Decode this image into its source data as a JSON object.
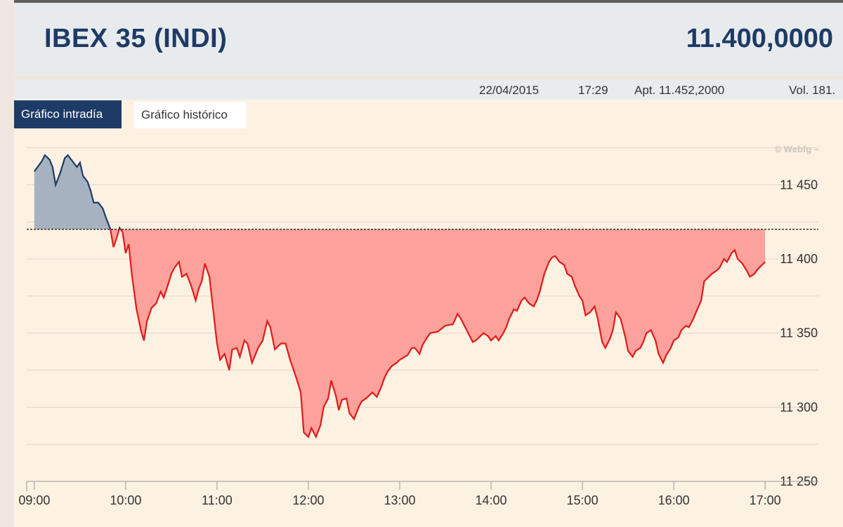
{
  "header": {
    "title": "IBEX 35 (INDI)",
    "price": "11.400,0000"
  },
  "infobar": {
    "date": "22/04/2015",
    "time": "17:29",
    "open": "Apt. 11.452,2000",
    "volume": "Vol. 181."
  },
  "tabs": [
    {
      "label": "Gráfico intradía",
      "active": true
    },
    {
      "label": "Gráfico histórico",
      "active": false
    }
  ],
  "watermark": "© Webfg –",
  "colors": {
    "header_text": "#1d3b66",
    "up_line": "#1d3b66",
    "up_fill": "#a7b2c0",
    "down_line": "#e01a1a",
    "down_fill": "#fca19b",
    "background": "#fdf1e2"
  },
  "chart_data": {
    "type": "area",
    "reference_value": 11420,
    "ylim": [
      11250,
      11480
    ],
    "xlim": [
      "08:55",
      "17:35"
    ],
    "yticks": [
      {
        "value": 11250,
        "label": "11 250"
      },
      {
        "value": 11300,
        "label": "11 300"
      },
      {
        "value": 11350,
        "label": "11 350"
      },
      {
        "value": 11400,
        "label": "11 400"
      },
      {
        "value": 11450,
        "label": "11 450"
      }
    ],
    "xticks": [
      "09:00",
      "10:00",
      "11:00",
      "12:00",
      "13:00",
      "14:00",
      "15:00",
      "16:00",
      "17:00"
    ],
    "grid": true,
    "points": [
      [
        "09:00",
        11459
      ],
      [
        "09:05",
        11466
      ],
      [
        "09:07",
        11470
      ],
      [
        "09:10",
        11467
      ],
      [
        "09:12",
        11462
      ],
      [
        "09:14",
        11450
      ],
      [
        "09:17",
        11458
      ],
      [
        "09:20",
        11468
      ],
      [
        "09:22",
        11470
      ],
      [
        "09:25",
        11466
      ],
      [
        "09:28",
        11462
      ],
      [
        "09:30",
        11465
      ],
      [
        "09:32",
        11456
      ],
      [
        "09:35",
        11452
      ],
      [
        "09:37",
        11446
      ],
      [
        "09:39",
        11438
      ],
      [
        "09:42",
        11438
      ],
      [
        "09:45",
        11434
      ],
      [
        "09:47",
        11428
      ],
      [
        "09:50",
        11420
      ],
      [
        "09:52",
        11408
      ],
      [
        "09:54",
        11414
      ],
      [
        "09:56",
        11421
      ],
      [
        "09:58",
        11418
      ],
      [
        "10:00",
        11404
      ],
      [
        "10:02",
        11410
      ],
      [
        "10:04",
        11390
      ],
      [
        "10:07",
        11367
      ],
      [
        "10:10",
        11352
      ],
      [
        "10:12",
        11345
      ],
      [
        "10:14",
        11358
      ],
      [
        "10:17",
        11367
      ],
      [
        "10:20",
        11370
      ],
      [
        "10:23",
        11378
      ],
      [
        "10:25",
        11374
      ],
      [
        "10:27",
        11380
      ],
      [
        "10:30",
        11390
      ],
      [
        "10:32",
        11394
      ],
      [
        "10:35",
        11398
      ],
      [
        "10:37",
        11388
      ],
      [
        "10:40",
        11390
      ],
      [
        "10:43",
        11382
      ],
      [
        "10:46",
        11372
      ],
      [
        "10:48",
        11380
      ],
      [
        "10:50",
        11385
      ],
      [
        "10:52",
        11397
      ],
      [
        "10:55",
        11388
      ],
      [
        "10:57",
        11370
      ],
      [
        "11:00",
        11343
      ],
      [
        "11:02",
        11332
      ],
      [
        "11:05",
        11336
      ],
      [
        "11:08",
        11325
      ],
      [
        "11:10",
        11339
      ],
      [
        "11:13",
        11340
      ],
      [
        "11:15",
        11334
      ],
      [
        "11:18",
        11345
      ],
      [
        "11:20",
        11343
      ],
      [
        "11:23",
        11330
      ],
      [
        "11:27",
        11340
      ],
      [
        "11:30",
        11345
      ],
      [
        "11:33",
        11358
      ],
      [
        "11:35",
        11354
      ],
      [
        "11:38",
        11339
      ],
      [
        "11:42",
        11343
      ],
      [
        "11:45",
        11343
      ],
      [
        "11:48",
        11332
      ],
      [
        "11:52",
        11320
      ],
      [
        "11:55",
        11310
      ],
      [
        "11:57",
        11283
      ],
      [
        "12:00",
        11280
      ],
      [
        "12:02",
        11286
      ],
      [
        "12:05",
        11280
      ],
      [
        "12:08",
        11288
      ],
      [
        "12:10",
        11300
      ],
      [
        "12:13",
        11306
      ],
      [
        "12:15",
        11318
      ],
      [
        "12:18",
        11308
      ],
      [
        "12:20",
        11298
      ],
      [
        "12:22",
        11305
      ],
      [
        "12:25",
        11306
      ],
      [
        "12:27",
        11296
      ],
      [
        "12:30",
        11292
      ],
      [
        "12:33",
        11300
      ],
      [
        "12:35",
        11304
      ],
      [
        "12:38",
        11306
      ],
      [
        "12:42",
        11310
      ],
      [
        "12:45",
        11307
      ],
      [
        "12:48",
        11314
      ],
      [
        "12:50",
        11320
      ],
      [
        "12:52",
        11324
      ],
      [
        "12:55",
        11328
      ],
      [
        "12:58",
        11330
      ],
      [
        "13:00",
        11332
      ],
      [
        "13:05",
        11335
      ],
      [
        "13:08",
        11340
      ],
      [
        "13:10",
        11340
      ],
      [
        "13:13",
        11336
      ],
      [
        "13:15",
        11342
      ],
      [
        "13:18",
        11347
      ],
      [
        "13:20",
        11350
      ],
      [
        "13:25",
        11351
      ],
      [
        "13:30",
        11355
      ],
      [
        "13:35",
        11356
      ],
      [
        "13:38",
        11363
      ],
      [
        "13:40",
        11360
      ],
      [
        "13:42",
        11356
      ],
      [
        "13:45",
        11350
      ],
      [
        "13:48",
        11344
      ],
      [
        "13:50",
        11345
      ],
      [
        "13:55",
        11350
      ],
      [
        "13:58",
        11348
      ],
      [
        "14:00",
        11345
      ],
      [
        "14:03",
        11348
      ],
      [
        "14:05",
        11345
      ],
      [
        "14:08",
        11350
      ],
      [
        "14:10",
        11354
      ],
      [
        "14:12",
        11360
      ],
      [
        "14:15",
        11366
      ],
      [
        "14:17",
        11365
      ],
      [
        "14:20",
        11372
      ],
      [
        "14:22",
        11374
      ],
      [
        "14:25",
        11370
      ],
      [
        "14:28",
        11368
      ],
      [
        "14:30",
        11372
      ],
      [
        "14:32",
        11378
      ],
      [
        "14:35",
        11390
      ],
      [
        "14:38",
        11398
      ],
      [
        "14:40",
        11401
      ],
      [
        "14:42",
        11402
      ],
      [
        "14:45",
        11398
      ],
      [
        "14:48",
        11396
      ],
      [
        "14:50",
        11390
      ],
      [
        "14:53",
        11388
      ],
      [
        "14:55",
        11382
      ],
      [
        "14:58",
        11375
      ],
      [
        "15:00",
        11372
      ],
      [
        "15:02",
        11362
      ],
      [
        "15:05",
        11364
      ],
      [
        "15:08",
        11368
      ],
      [
        "15:10",
        11360
      ],
      [
        "15:13",
        11344
      ],
      [
        "15:15",
        11340
      ],
      [
        "15:18",
        11346
      ],
      [
        "15:20",
        11352
      ],
      [
        "15:22",
        11364
      ],
      [
        "15:25",
        11360
      ],
      [
        "15:28",
        11348
      ],
      [
        "15:30",
        11338
      ],
      [
        "15:33",
        11334
      ],
      [
        "15:35",
        11338
      ],
      [
        "15:38",
        11340
      ],
      [
        "15:40",
        11344
      ],
      [
        "15:42",
        11350
      ],
      [
        "15:45",
        11352
      ],
      [
        "15:48",
        11345
      ],
      [
        "15:50",
        11336
      ],
      [
        "15:53",
        11330
      ],
      [
        "15:55",
        11335
      ],
      [
        "15:58",
        11340
      ],
      [
        "16:00",
        11345
      ],
      [
        "16:03",
        11347
      ],
      [
        "16:05",
        11352
      ],
      [
        "16:08",
        11355
      ],
      [
        "16:10",
        11354
      ],
      [
        "16:13",
        11360
      ],
      [
        "16:15",
        11365
      ],
      [
        "16:18",
        11372
      ],
      [
        "16:20",
        11385
      ],
      [
        "16:23",
        11388
      ],
      [
        "16:25",
        11390
      ],
      [
        "16:28",
        11392
      ],
      [
        "16:30",
        11394
      ],
      [
        "16:33",
        11400
      ],
      [
        "16:35",
        11398
      ],
      [
        "16:38",
        11404
      ],
      [
        "16:40",
        11406
      ],
      [
        "16:42",
        11400
      ],
      [
        "16:45",
        11397
      ],
      [
        "16:48",
        11392
      ],
      [
        "16:50",
        11388
      ],
      [
        "16:53",
        11390
      ],
      [
        "16:55",
        11393
      ],
      [
        "16:58",
        11396
      ],
      [
        "17:00",
        11398
      ]
    ]
  }
}
